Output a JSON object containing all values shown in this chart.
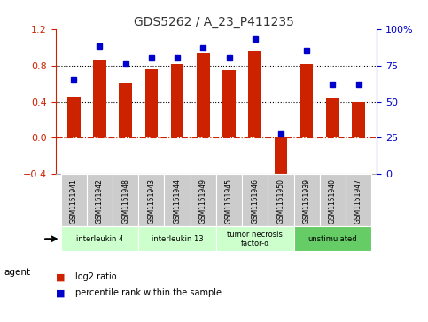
{
  "title": "GDS5262 / A_23_P411235",
  "samples": [
    "GSM1151941",
    "GSM1151942",
    "GSM1151948",
    "GSM1151943",
    "GSM1151944",
    "GSM1151949",
    "GSM1151945",
    "GSM1151946",
    "GSM1151950",
    "GSM1151939",
    "GSM1151940",
    "GSM1151947"
  ],
  "log2_ratio": [
    0.45,
    0.85,
    0.6,
    0.76,
    0.82,
    0.93,
    0.75,
    0.95,
    -0.48,
    0.82,
    0.43,
    0.4
  ],
  "percentile": [
    65,
    88,
    76,
    80,
    80,
    87,
    80,
    93,
    28,
    85,
    62,
    62
  ],
  "groups": [
    {
      "label": "interleukin 4",
      "indices": [
        0,
        1,
        2
      ],
      "color": "#ccffcc"
    },
    {
      "label": "interleukin 13",
      "indices": [
        3,
        4,
        5
      ],
      "color": "#ccffcc"
    },
    {
      "label": "tumor necrosis\nfactor-α",
      "indices": [
        6,
        7,
        8
      ],
      "color": "#ccffcc"
    },
    {
      "label": "unstimulated",
      "indices": [
        9,
        10,
        11
      ],
      "color": "#66cc66"
    }
  ],
  "bar_color": "#cc2200",
  "dot_color": "#0000cc",
  "ylim_left": [
    -0.4,
    1.2
  ],
  "ylim_right": [
    0,
    100
  ],
  "yticks_left": [
    -0.4,
    0.0,
    0.4,
    0.8,
    1.2
  ],
  "yticks_right": [
    0,
    25,
    50,
    75,
    100
  ],
  "yticklabels_right": [
    "0",
    "25",
    "50",
    "75",
    "100%"
  ],
  "hlines": [
    0.4,
    0.8
  ],
  "zero_line_color": "#cc2200",
  "grid_color": "#000000",
  "bg_color": "#ffffff",
  "sample_bg": "#cccccc",
  "legend_items": [
    {
      "label": "log2 ratio",
      "color": "#cc2200"
    },
    {
      "label": "percentile rank within the sample",
      "color": "#0000cc"
    }
  ]
}
